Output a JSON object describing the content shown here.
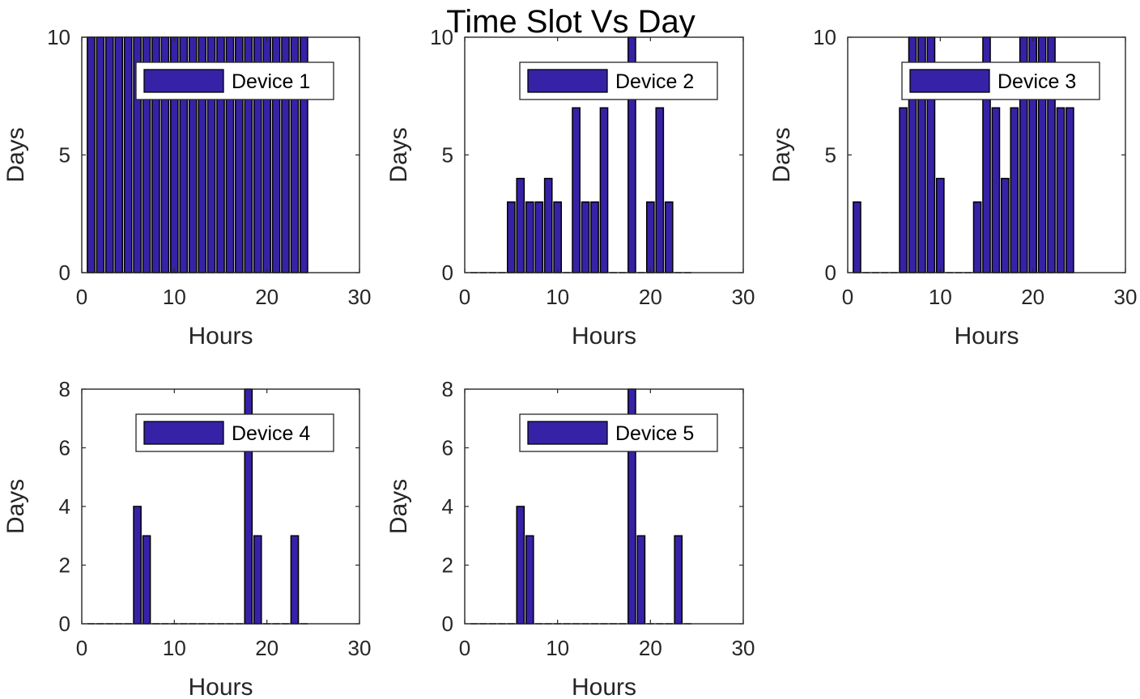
{
  "figure": {
    "title": "Time Slot Vs Day",
    "bar_color": "#3622A6",
    "edge_color": "#000000"
  },
  "chart_data": [
    {
      "type": "bar",
      "legend": "Device 1",
      "legend_position": "top-right",
      "xlabel": "Hours",
      "ylabel": "Days",
      "xlim": [
        0,
        30
      ],
      "ylim": [
        0,
        10
      ],
      "xticks": [
        0,
        10,
        20,
        30
      ],
      "yticks": [
        0,
        5,
        10
      ],
      "x": [
        1,
        2,
        3,
        4,
        5,
        6,
        7,
        8,
        9,
        10,
        11,
        12,
        13,
        14,
        15,
        16,
        17,
        18,
        19,
        20,
        21,
        22,
        23,
        24
      ],
      "values": [
        10,
        10,
        10,
        10,
        10,
        10,
        10,
        10,
        10,
        10,
        10,
        10,
        10,
        10,
        10,
        10,
        10,
        10,
        10,
        10,
        10,
        10,
        10,
        10
      ]
    },
    {
      "type": "bar",
      "legend": "Device 2",
      "legend_position": "top-right",
      "xlabel": "Hours",
      "ylabel": "Days",
      "xlim": [
        0,
        30
      ],
      "ylim": [
        0,
        10
      ],
      "xticks": [
        0,
        10,
        20,
        30
      ],
      "yticks": [
        0,
        5,
        10
      ],
      "x": [
        1,
        2,
        3,
        4,
        5,
        6,
        7,
        8,
        9,
        10,
        11,
        12,
        13,
        14,
        15,
        16,
        17,
        18,
        19,
        20,
        21,
        22,
        23,
        24
      ],
      "values": [
        0,
        0,
        0,
        0,
        3,
        4,
        3,
        3,
        4,
        3,
        0,
        7,
        3,
        3,
        7,
        0,
        0,
        10,
        0,
        3,
        7,
        3,
        0,
        0
      ]
    },
    {
      "type": "bar",
      "legend": "Device 3",
      "legend_position": "top-right",
      "xlabel": "Hours",
      "ylabel": "Days",
      "xlim": [
        0,
        30
      ],
      "ylim": [
        0,
        10
      ],
      "xticks": [
        0,
        10,
        20,
        30
      ],
      "yticks": [
        0,
        5,
        10
      ],
      "x": [
        1,
        2,
        3,
        4,
        5,
        6,
        7,
        8,
        9,
        10,
        11,
        12,
        13,
        14,
        15,
        16,
        17,
        18,
        19,
        20,
        21,
        22,
        23,
        24
      ],
      "values": [
        3,
        0,
        0,
        0,
        0,
        7,
        10,
        10,
        10,
        4,
        0,
        0,
        0,
        3,
        10,
        7,
        4,
        7,
        10,
        10,
        10,
        10,
        7,
        7
      ]
    },
    {
      "type": "bar",
      "legend": "Device 4",
      "legend_position": "top-right",
      "xlabel": "Hours",
      "ylabel": "Days",
      "xlim": [
        0,
        30
      ],
      "ylim": [
        0,
        8
      ],
      "xticks": [
        0,
        10,
        20,
        30
      ],
      "yticks": [
        0,
        2,
        4,
        6,
        8
      ],
      "x": [
        1,
        2,
        3,
        4,
        5,
        6,
        7,
        8,
        9,
        10,
        11,
        12,
        13,
        14,
        15,
        16,
        17,
        18,
        19,
        20,
        21,
        22,
        23,
        24
      ],
      "values": [
        0,
        0,
        0,
        0,
        0,
        4,
        3,
        0,
        0,
        0,
        0,
        0,
        0,
        0,
        0,
        0,
        0,
        8,
        3,
        0,
        0,
        0,
        3,
        0
      ]
    },
    {
      "type": "bar",
      "legend": "Device 5",
      "legend_position": "top-right",
      "xlabel": "Hours",
      "ylabel": "Days",
      "xlim": [
        0,
        30
      ],
      "ylim": [
        0,
        8
      ],
      "xticks": [
        0,
        10,
        20,
        30
      ],
      "yticks": [
        0,
        2,
        4,
        6,
        8
      ],
      "x": [
        1,
        2,
        3,
        4,
        5,
        6,
        7,
        8,
        9,
        10,
        11,
        12,
        13,
        14,
        15,
        16,
        17,
        18,
        19,
        20,
        21,
        22,
        23,
        24
      ],
      "values": [
        0,
        0,
        0,
        0,
        0,
        4,
        3,
        0,
        0,
        0,
        0,
        0,
        0,
        0,
        0,
        0,
        0,
        8,
        3,
        0,
        0,
        0,
        3,
        0
      ]
    }
  ]
}
